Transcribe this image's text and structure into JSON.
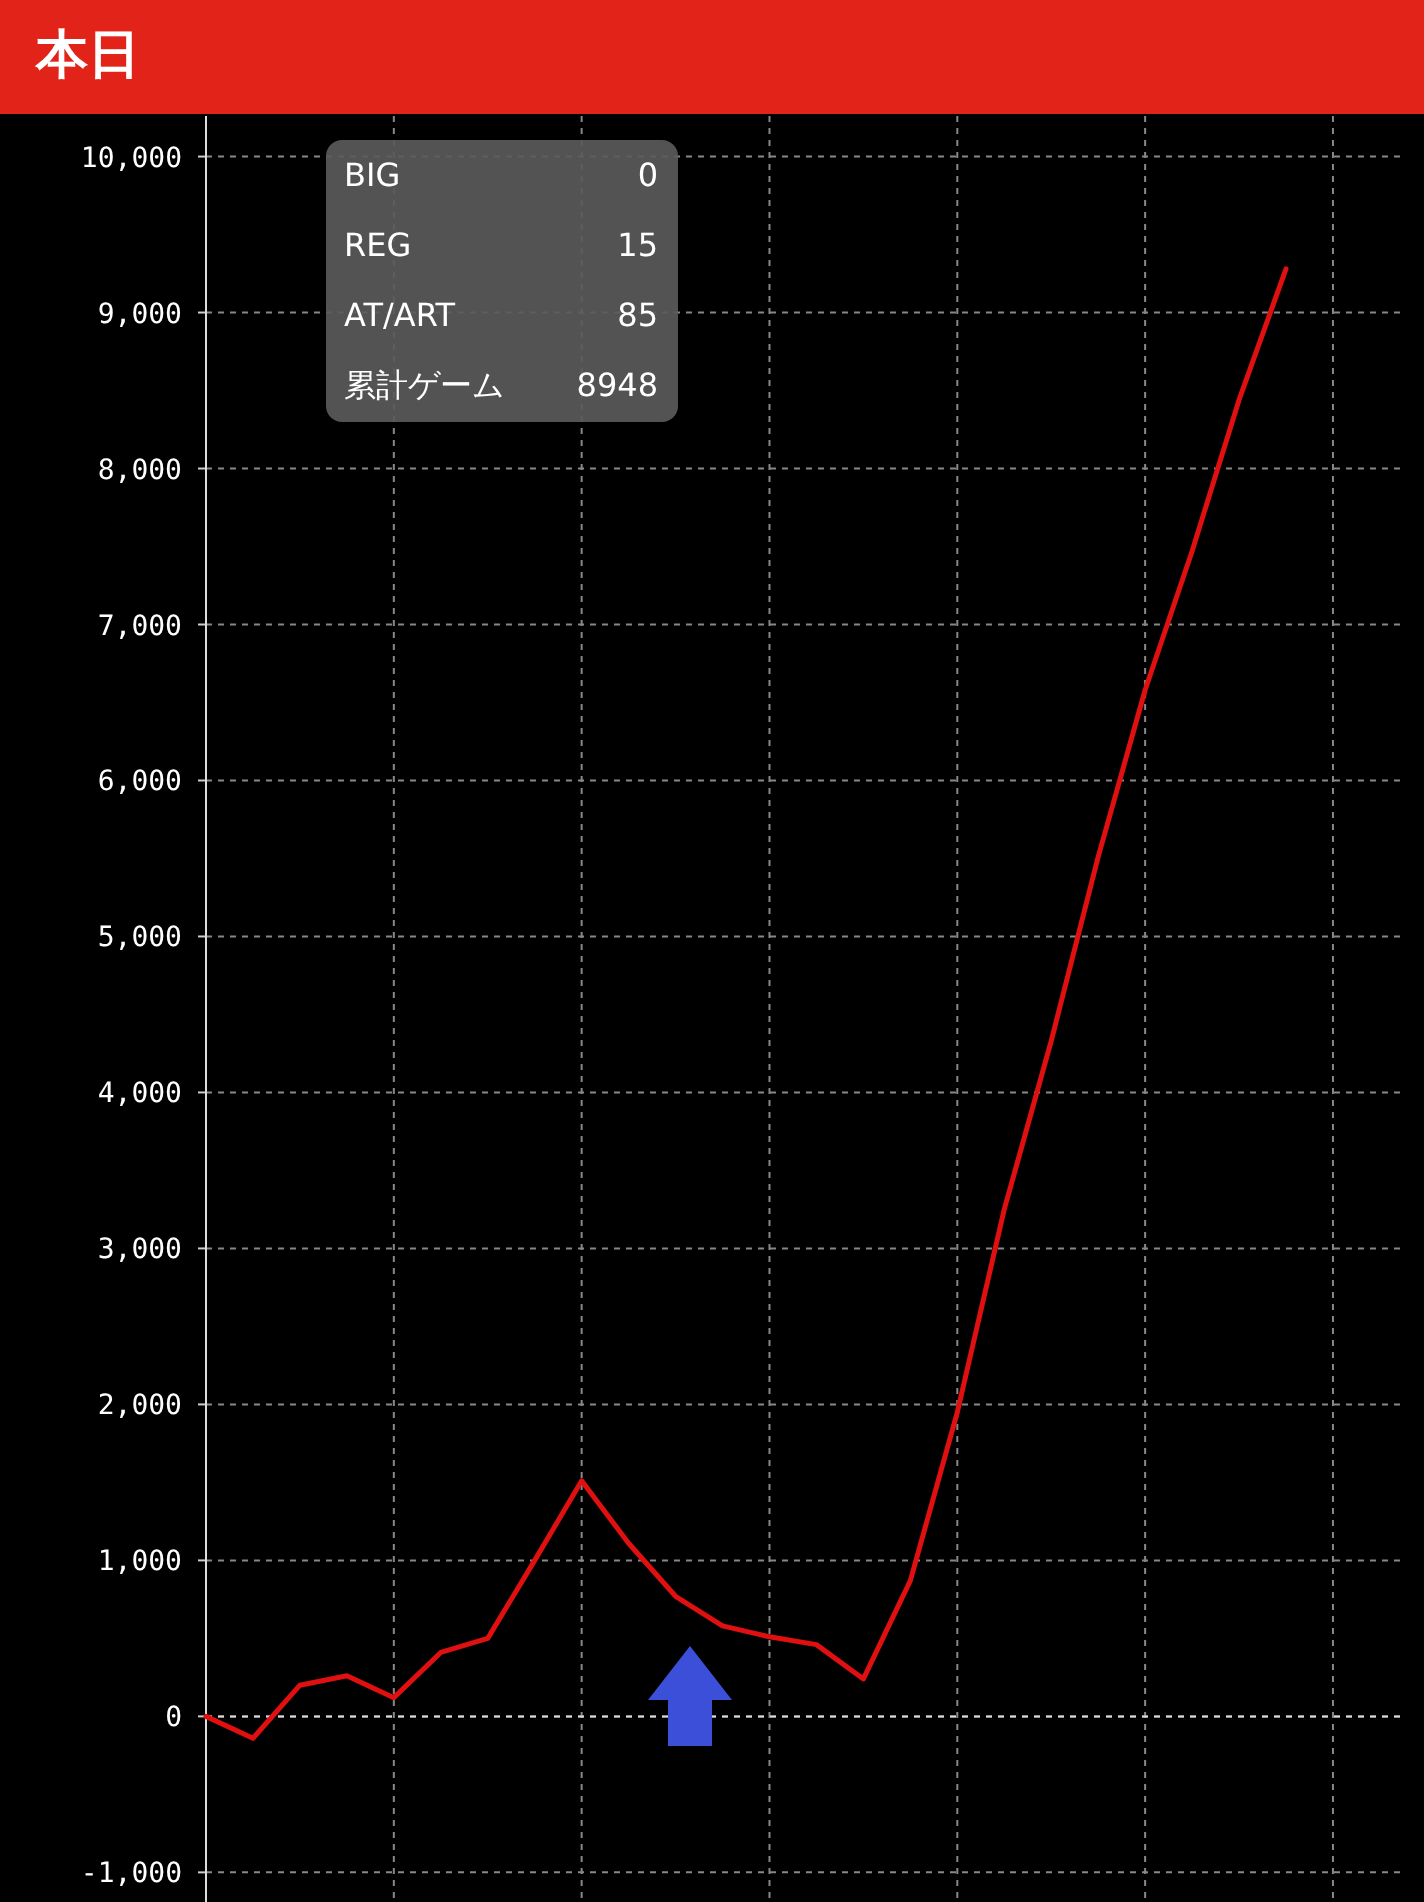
{
  "chart_data": {
    "type": "line",
    "title": "本日",
    "categories": [
      null,
      null,
      null,
      null,
      null,
      null,
      null,
      null,
      null,
      null,
      null,
      null,
      null,
      null,
      null,
      null,
      null,
      null,
      null,
      null,
      null,
      null,
      null,
      null
    ],
    "series": [
      {
        "color": "#e01010",
        "values": [
          0,
          -140,
          200,
          260,
          120,
          410,
          500,
          1000,
          1510,
          1110,
          770,
          580,
          510,
          460,
          240,
          870,
          1950,
          3250,
          4330,
          5510,
          6580,
          7470,
          8440,
          9280
        ]
      }
    ],
    "ylim": [
      -1190,
      10260
    ],
    "yticks": [
      {
        "value": -1000,
        "label": "-1,000"
      },
      0,
      {
        "value": 1000,
        "label": "1,000"
      },
      {
        "value": 2000,
        "label": "2,000"
      },
      {
        "value": 3000,
        "label": "3,000"
      },
      {
        "value": 4000,
        "label": "4,000"
      },
      {
        "value": 5000,
        "label": "5,000"
      },
      {
        "value": 6000,
        "label": "6,000"
      },
      {
        "value": 7000,
        "label": "7,000"
      },
      {
        "value": 8000,
        "label": "8,000"
      },
      {
        "value": 9000,
        "label": "9,000"
      },
      {
        "value": 10000,
        "label": "10,000"
      }
    ],
    "grid": true,
    "ref_lines": [
      {
        "axis": "y",
        "value": 0,
        "color": "#dddddd",
        "line_style": "dashed"
      }
    ],
    "annotations": [
      "BIG",
      "0",
      "REG",
      "15",
      "AT/ART",
      "85",
      "累計ゲーム",
      "8948"
    ]
  }
}
